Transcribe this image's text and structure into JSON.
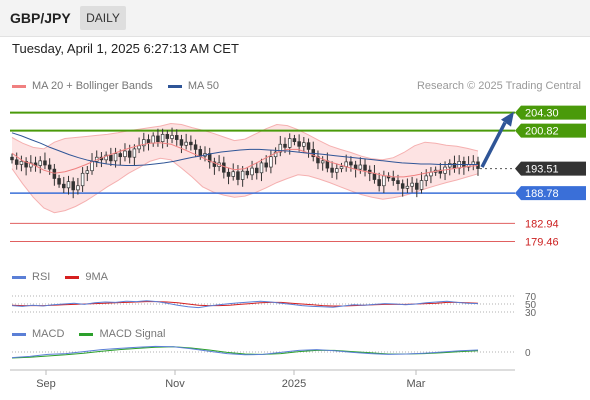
{
  "header": {
    "symbol": "GBP/JPY",
    "timeframe": "DAILY"
  },
  "datetime": "Tuesday, April 1, 2025 6:27:13 AM CET",
  "credit": "Research © 2025 Trading Central",
  "legend_main": [
    {
      "label": "MA 20 + Bollinger Bands",
      "color": "#f08080"
    },
    {
      "label": "MA 50",
      "color": "#2f5597"
    }
  ],
  "legend_rsi": [
    {
      "label": "RSI",
      "color": "#5b7fd6"
    },
    {
      "label": "9MA",
      "color": "#d62020"
    }
  ],
  "legend_macd": [
    {
      "label": "MACD",
      "color": "#5b7fd6"
    },
    {
      "label": "MACD Signal",
      "color": "#2ca02c"
    }
  ],
  "colors": {
    "resistance": "#4a9a0a",
    "support": "#3a6fd8",
    "lower": "#e06060",
    "arrow": "#2f5597",
    "band_fill": "#fde3e3"
  },
  "chart_data": [
    {
      "type": "candlestick",
      "x_tick_labels": [
        "Sep",
        "Nov",
        "2025",
        "Mar"
      ],
      "close_series": [
        195.2,
        194.3,
        194.9,
        193.8,
        194.6,
        194.1,
        195.0,
        194.2,
        193.4,
        191.6,
        190.5,
        189.8,
        191.0,
        189.4,
        190.2,
        192.6,
        193.1,
        194.9,
        195.7,
        195.2,
        196.1,
        195.0,
        196.4,
        195.8,
        196.9,
        195.7,
        197.3,
        197.9,
        199.1,
        198.4,
        199.8,
        198.7,
        200.1,
        199.3,
        199.9,
        199.1,
        198.0,
        198.6,
        198.1,
        197.2,
        195.9,
        196.4,
        194.8,
        193.9,
        194.6,
        192.8,
        192.0,
        192.9,
        191.4,
        193.0,
        192.3,
        193.6,
        192.7,
        194.6,
        193.8,
        195.8,
        196.7,
        198.2,
        197.6,
        199.3,
        198.7,
        197.8,
        198.5,
        197.2,
        195.8,
        194.6,
        195.0,
        193.6,
        192.8,
        193.5,
        193.9,
        194.8,
        194.2,
        193.4,
        194.2,
        193.2,
        192.6,
        191.4,
        190.2,
        192.1,
        191.7,
        191.2,
        190.6,
        189.7,
        190.1,
        190.7,
        189.5,
        191.2,
        192.1,
        192.8,
        193.2,
        192.6,
        193.8,
        194.5,
        193.6,
        194.9,
        193.8,
        194.3,
        194.8,
        193.51
      ],
      "ma50": [
        200.4,
        199.8,
        199.1,
        198.4,
        197.6,
        196.9,
        196.2,
        195.6,
        195.1,
        194.7,
        194.4,
        194.2,
        194.1,
        194.1,
        194.2,
        194.4,
        194.6,
        194.9,
        195.3,
        195.7,
        196.0,
        196.4,
        196.7,
        196.9,
        197.1,
        197.2,
        197.2,
        197.1,
        197.0,
        196.9,
        196.7,
        196.5,
        196.4,
        196.2,
        196.0,
        195.8,
        195.6,
        195.4,
        195.2,
        195.0,
        194.8,
        194.6,
        194.5,
        194.4,
        194.4,
        194.3,
        194.3,
        194.3,
        194.3,
        194.3
      ],
      "ma20": [
        196.5,
        195.0,
        194.3,
        193.2,
        192.6,
        192.9,
        193.5,
        194.3,
        195.2,
        196.0,
        196.7,
        197.4,
        198.0,
        198.4,
        198.5,
        198.2,
        197.4,
        196.5,
        195.6,
        194.7,
        193.9,
        193.3,
        193.5,
        194.5,
        195.6,
        196.6,
        197.2,
        197.2,
        196.5,
        195.6,
        194.8,
        194.2,
        193.6,
        193.1,
        192.7,
        192.2,
        191.9,
        191.9,
        192.2,
        192.6,
        193.0,
        193.3,
        193.6,
        193.9,
        194.1
      ],
      "bb_upper": [
        199.5,
        198.4,
        197.6,
        197.3,
        198.6,
        199.3,
        199.5,
        199.7,
        199.9,
        200.1,
        200.4,
        200.8,
        201.1,
        201.4,
        201.7,
        202.2,
        202.0,
        201.4,
        200.9,
        200.3,
        199.6,
        198.9,
        199.2,
        200.2,
        201.2,
        202.0,
        201.8,
        201.0,
        200.0,
        198.9,
        197.9,
        197.2,
        196.6,
        195.9,
        195.4,
        195.2,
        195.6,
        196.6,
        197.9,
        198.6,
        198.4,
        198.0,
        197.8,
        197.4,
        196.9
      ],
      "bb_lower": [
        193.5,
        190.6,
        188.0,
        185.9,
        185.0,
        185.4,
        186.2,
        187.3,
        188.6,
        190.0,
        191.2,
        192.6,
        193.7,
        194.9,
        195.5,
        195.2,
        193.6,
        191.9,
        190.0,
        189.0,
        188.4,
        188.0,
        188.2,
        188.9,
        189.8,
        190.8,
        191.6,
        192.3,
        192.1,
        191.5,
        190.8,
        190.0,
        189.2,
        188.5,
        188.0,
        187.6,
        187.9,
        188.3,
        188.9,
        189.6,
        190.2,
        190.8,
        191.3,
        191.9,
        192.5
      ],
      "levels": [
        {
          "value": 204.3,
          "label": "204.30",
          "kind": "resistance"
        },
        {
          "value": 200.82,
          "label": "200.82",
          "kind": "resistance"
        },
        {
          "value": 193.51,
          "label": "193.51",
          "kind": "current"
        },
        {
          "value": 188.78,
          "label": "188.78",
          "kind": "support"
        },
        {
          "value": 182.94,
          "label": "182.94",
          "kind": "lower"
        },
        {
          "value": 179.46,
          "label": "179.46",
          "kind": "lower"
        }
      ],
      "y_range": [
        175.5,
        207.5
      ],
      "arrow": {
        "from": 193.8,
        "to": 204.3
      }
    },
    {
      "type": "line",
      "indicator": "RSI",
      "y_ticks": [
        "70",
        "50",
        "30"
      ],
      "rsi": [
        46,
        44,
        47,
        45,
        48,
        50,
        52,
        49,
        53,
        55,
        54,
        57,
        56,
        58,
        56,
        52,
        47,
        43,
        41,
        45,
        48,
        51,
        53,
        55,
        57,
        55,
        52,
        49,
        46,
        44,
        43,
        42,
        45,
        48,
        47,
        49,
        51,
        50,
        48,
        50,
        53,
        55,
        57,
        54,
        52,
        51
      ],
      "signal": [
        47,
        46,
        46,
        46,
        47,
        48,
        49,
        50,
        51,
        52,
        53,
        54,
        55,
        56,
        56,
        55,
        53,
        50,
        47,
        46,
        46,
        47,
        49,
        51,
        53,
        54,
        54,
        52,
        50,
        48,
        46,
        45,
        45,
        46,
        47,
        48,
        49,
        49,
        49,
        50,
        51,
        52,
        54,
        54,
        53,
        52
      ]
    },
    {
      "type": "line",
      "indicator": "MACD",
      "y_ticks": [
        "0"
      ],
      "macd": [
        -1.4,
        -1.1,
        -0.6,
        -0.4,
        0.1,
        0.6,
        0.9,
        1.2,
        1.4,
        1.3,
        0.8,
        0.2,
        -0.4,
        -0.7,
        -0.6,
        -0.1,
        0.4,
        0.6,
        0.3,
        -0.1,
        -0.4,
        -0.6,
        -0.5,
        -0.3,
        0.0,
        0.3,
        0.5
      ],
      "signal": [
        -1.5,
        -1.3,
        -1.0,
        -0.7,
        -0.3,
        0.2,
        0.6,
        0.9,
        1.2,
        1.3,
        1.0,
        0.5,
        -0.1,
        -0.5,
        -0.6,
        -0.4,
        0.1,
        0.4,
        0.4,
        0.1,
        -0.2,
        -0.5,
        -0.5,
        -0.4,
        -0.2,
        0.1,
        0.3
      ]
    }
  ]
}
